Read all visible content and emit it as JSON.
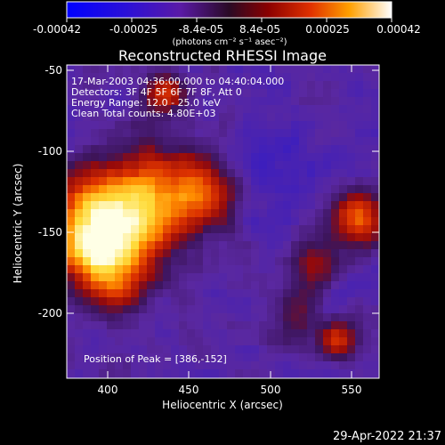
{
  "colorbar": {
    "tick_labels": [
      "-0.00042",
      "-0.00025",
      "-8.4e-05",
      "8.4e-05",
      "0.00025",
      "0.00042"
    ],
    "min": -0.00042,
    "max": 0.00042,
    "unit_text": "(photons cm⁻² s⁻¹ asec⁻²)"
  },
  "plot": {
    "title": "Reconstructed RHESSI Image",
    "info_lines": [
      "17-Mar-2003 04:36:00.000 to 04:40:04.000",
      "Detectors: 3F 4F 5F 6F 7F 8F, Att 0",
      "Energy Range: 12.0 - 25.0 keV",
      "Clean     Total counts: 4.80E+03"
    ],
    "peak_label": "Position of Peak = [386,-152]",
    "xlabel": "Heliocentric X (arcsec)",
    "ylabel": "Heliocentric Y (arcsec)",
    "x_ticks": [
      "400",
      "450",
      "500",
      "550"
    ],
    "y_ticks": [
      "-50",
      "-100",
      "-150",
      "-200"
    ],
    "x_range": [
      374,
      566
    ],
    "y_range": [
      -244,
      -46
    ]
  },
  "footer": {
    "timestamp": "29-Apr-2022 21:37"
  }
}
